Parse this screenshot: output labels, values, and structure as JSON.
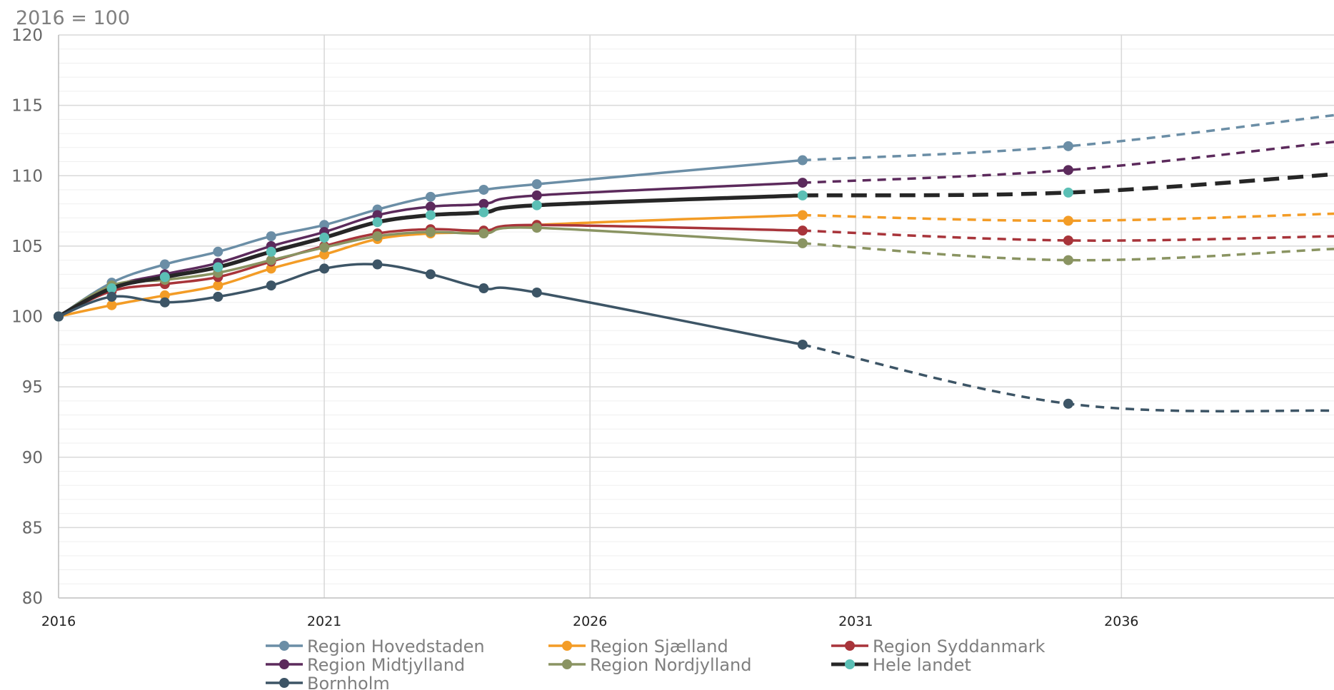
{
  "chart_data": {
    "type": "line",
    "title": "",
    "unit_label": "2016 = 100",
    "xlabel": "",
    "ylabel": "",
    "xlim": [
      2016,
      2040
    ],
    "ylim": [
      80,
      120
    ],
    "y_ticks": [
      80,
      85,
      90,
      95,
      100,
      105,
      110,
      115,
      120
    ],
    "x_ticks": [
      2016,
      2021,
      2026,
      2031,
      2036
    ],
    "y_minor_step": 1,
    "grid": true,
    "legend_position": "bottom",
    "dashed_from": 2030,
    "series": [
      {
        "name": "Region Hovedstaden",
        "color": "#6b8ea6",
        "x": [
          2016,
          2017,
          2018,
          2019,
          2020,
          2021,
          2022,
          2023,
          2024,
          2025,
          2030,
          2035,
          2040
        ],
        "values": [
          100,
          102.4,
          103.7,
          104.6,
          105.7,
          106.5,
          107.6,
          108.5,
          109.0,
          109.4,
          111.1,
          112.1,
          114.3
        ]
      },
      {
        "name": "Region Sjælland",
        "color": "#f39c26",
        "x": [
          2016,
          2017,
          2018,
          2019,
          2020,
          2021,
          2022,
          2023,
          2024,
          2025,
          2030,
          2035,
          2040
        ],
        "values": [
          100,
          100.8,
          101.5,
          102.2,
          103.4,
          104.4,
          105.5,
          105.9,
          106.0,
          106.5,
          107.2,
          106.8,
          107.3
        ]
      },
      {
        "name": "Region Syddanmark",
        "color": "#a8343a",
        "x": [
          2016,
          2017,
          2018,
          2019,
          2020,
          2021,
          2022,
          2023,
          2024,
          2025,
          2030,
          2035,
          2040
        ],
        "values": [
          100,
          101.8,
          102.3,
          102.8,
          103.9,
          105.0,
          105.9,
          106.2,
          106.1,
          106.5,
          106.1,
          105.4,
          105.7
        ]
      },
      {
        "name": "Region Midtjylland",
        "color": "#5c2a5c",
        "x": [
          2016,
          2017,
          2018,
          2019,
          2020,
          2021,
          2022,
          2023,
          2024,
          2025,
          2030,
          2035,
          2040
        ],
        "values": [
          100,
          102.1,
          103.0,
          103.8,
          105.0,
          106.0,
          107.2,
          107.8,
          108.0,
          108.6,
          109.5,
          110.4,
          112.4
        ]
      },
      {
        "name": "Region Nordjylland",
        "color": "#8a9462",
        "x": [
          2016,
          2017,
          2018,
          2019,
          2020,
          2021,
          2022,
          2023,
          2024,
          2025,
          2030,
          2035,
          2040
        ],
        "values": [
          100,
          102.2,
          102.6,
          103.1,
          104.0,
          104.9,
          105.7,
          106.0,
          105.9,
          106.3,
          105.2,
          104.0,
          104.8
        ]
      },
      {
        "name": "Hele landet",
        "color": "#262626",
        "x": [
          2016,
          2017,
          2018,
          2019,
          2020,
          2021,
          2022,
          2023,
          2024,
          2025,
          2030,
          2035,
          2040
        ],
        "values": [
          100,
          102.0,
          102.8,
          103.5,
          104.6,
          105.6,
          106.7,
          107.2,
          107.4,
          107.9,
          108.6,
          108.8,
          110.1
        ]
      },
      {
        "name": "Bornholm",
        "color": "#3d5566",
        "x": [
          2016,
          2017,
          2018,
          2019,
          2020,
          2021,
          2022,
          2023,
          2024,
          2025,
          2030,
          2035,
          2040
        ],
        "values": [
          100,
          101.4,
          101.0,
          101.4,
          102.2,
          103.4,
          103.7,
          103.0,
          102.0,
          101.7,
          98.0,
          93.8,
          93.3
        ]
      }
    ]
  }
}
